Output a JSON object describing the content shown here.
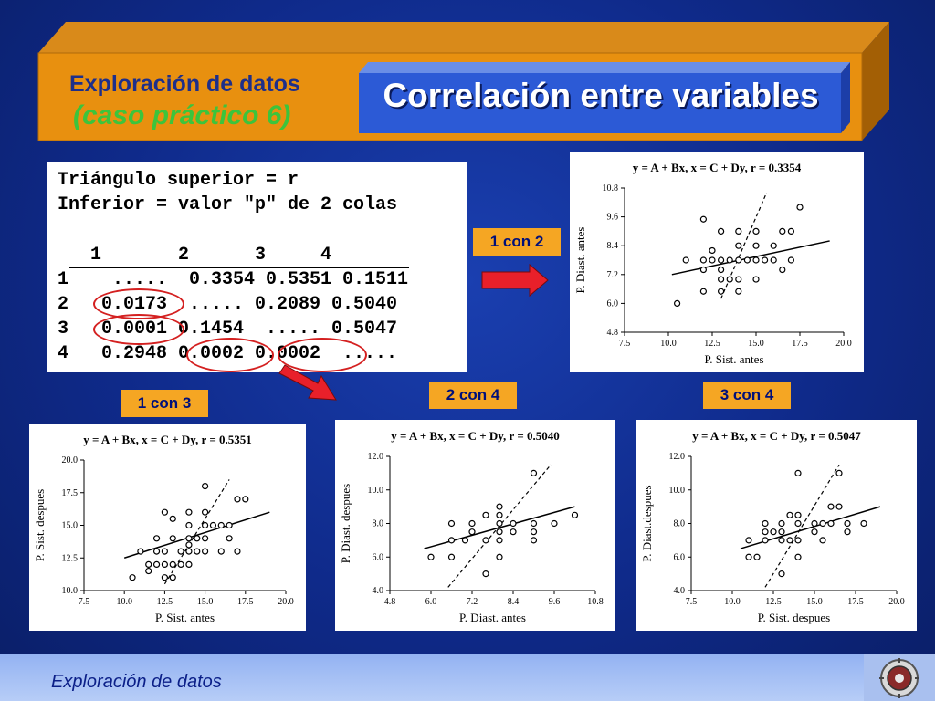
{
  "header": {
    "subtitle_line1": "Exploración de datos",
    "subtitle_line2": "(caso práctico 6)",
    "title": "Correlación entre variables"
  },
  "matrix": {
    "line1": "Triángulo superior = r",
    "line2": "Inferior = valor \"p\" de 2 colas",
    "header_row": "   1       2      3     4",
    "row1": "1    .....  0.3354 0.5351 0.1511",
    "row2": "2   0.0173  ..... 0.2089 0.5040",
    "row3": "3   0.0001 0.1454  ..... 0.5047",
    "row4": "4   0.2948 0.0002 0.0002  .....",
    "highlight_color": "#d42020"
  },
  "tags": {
    "t12": "1 con 2",
    "t13": "1 con 3",
    "t24": "2 con 4",
    "t34": "3 con 4",
    "color": "#f5a623"
  },
  "footer": {
    "text": "Exploración de datos"
  },
  "chart_data": [
    {
      "id": "c12",
      "type": "scatter",
      "title": "y = A + Bx, x = C + Dy, r = 0.3354",
      "xlabel": "P. Sist. antes",
      "ylabel": "P. Diast. antes",
      "xlim": [
        7.5,
        20.0
      ],
      "ylim": [
        4.8,
        10.8
      ],
      "xticks": [
        "7.5",
        "10.0",
        "12.5",
        "15.0",
        "17.5",
        "20.0"
      ],
      "yticks": [
        "4.8",
        "6.0",
        "7.2",
        "8.4",
        "9.6",
        "10.8"
      ],
      "points": [
        [
          10.5,
          6.0
        ],
        [
          11,
          7.8
        ],
        [
          12,
          9.5
        ],
        [
          12,
          7.8
        ],
        [
          12,
          7.4
        ],
        [
          12,
          6.5
        ],
        [
          12.5,
          8.2
        ],
        [
          12.5,
          7.8
        ],
        [
          13,
          9.0
        ],
        [
          13,
          7.8
        ],
        [
          13,
          7.4
        ],
        [
          13,
          7.0
        ],
        [
          13,
          6.5
        ],
        [
          13.5,
          7.8
        ],
        [
          13.5,
          7.0
        ],
        [
          14,
          9.0
        ],
        [
          14,
          8.4
        ],
        [
          14,
          7.8
        ],
        [
          14,
          7.0
        ],
        [
          14,
          6.5
        ],
        [
          14.5,
          7.8
        ],
        [
          15,
          9.0
        ],
        [
          15,
          8.4
        ],
        [
          15,
          7.8
        ],
        [
          15,
          7.0
        ],
        [
          15.5,
          7.8
        ],
        [
          16,
          8.4
        ],
        [
          16,
          7.8
        ],
        [
          16.5,
          9.0
        ],
        [
          16.5,
          7.4
        ],
        [
          17,
          9.0
        ],
        [
          17,
          7.8
        ],
        [
          17.5,
          10.0
        ]
      ],
      "fit_solid": [
        [
          10.2,
          7.2
        ],
        [
          19.2,
          8.6
        ]
      ],
      "fit_dashed": [
        [
          13.0,
          6.2
        ],
        [
          15.6,
          10.6
        ]
      ]
    },
    {
      "id": "c13",
      "type": "scatter",
      "title": "y = A + Bx, x = C + Dy, r = 0.5351",
      "xlabel": "P. Sist. antes",
      "ylabel": "P. Sist. despues",
      "xlim": [
        7.5,
        20.0
      ],
      "ylim": [
        10.0,
        20.0
      ],
      "xticks": [
        "7.5",
        "10.0",
        "12.5",
        "15.0",
        "17.5",
        "20.0"
      ],
      "yticks": [
        "10.0",
        "12.5",
        "15.0",
        "17.5",
        "20.0"
      ],
      "points": [
        [
          10.5,
          11.0
        ],
        [
          11,
          13.0
        ],
        [
          11.5,
          12.0
        ],
        [
          11.5,
          11.5
        ],
        [
          12,
          14.0
        ],
        [
          12,
          13.0
        ],
        [
          12,
          12.0
        ],
        [
          12.5,
          16.0
        ],
        [
          12.5,
          13.0
        ],
        [
          12.5,
          12.0
        ],
        [
          12.5,
          11.0
        ],
        [
          13,
          15.5
        ],
        [
          13,
          14.0
        ],
        [
          13,
          12.0
        ],
        [
          13,
          11.0
        ],
        [
          13.5,
          13.0
        ],
        [
          13.5,
          12.0
        ],
        [
          14,
          16.0
        ],
        [
          14,
          15.0
        ],
        [
          14,
          14.0
        ],
        [
          14,
          13.5
        ],
        [
          14,
          13.0
        ],
        [
          14,
          12.0
        ],
        [
          14.5,
          14.0
        ],
        [
          14.5,
          13.0
        ],
        [
          15,
          18.0
        ],
        [
          15,
          16.0
        ],
        [
          15,
          15.0
        ],
        [
          15,
          14.0
        ],
        [
          15,
          13.0
        ],
        [
          15.5,
          15.0
        ],
        [
          16,
          15.0
        ],
        [
          16,
          13.0
        ],
        [
          16.5,
          15.0
        ],
        [
          16.5,
          14.0
        ],
        [
          17,
          17.0
        ],
        [
          17,
          13.0
        ],
        [
          17.5,
          17.0
        ]
      ],
      "fit_solid": [
        [
          10.0,
          12.5
        ],
        [
          19.0,
          16.0
        ]
      ],
      "fit_dashed": [
        [
          12.5,
          10.5
        ],
        [
          16.5,
          18.5
        ]
      ]
    },
    {
      "id": "c24",
      "type": "scatter",
      "title": "y = A + Bx, x = C + Dy, r = 0.5040",
      "xlabel": "P. Diast. antes",
      "ylabel": "P. Diast. despues",
      "xlim": [
        4.8,
        10.8
      ],
      "ylim": [
        4.0,
        12.0
      ],
      "xticks": [
        "4.8",
        "6.0",
        "7.2",
        "8.4",
        "9.6",
        "10.8"
      ],
      "yticks": [
        "4.0",
        "6.0",
        "8.0",
        "10.0",
        "12.0"
      ],
      "points": [
        [
          6.0,
          6.0
        ],
        [
          6.6,
          8.0
        ],
        [
          6.6,
          7.0
        ],
        [
          6.6,
          6.0
        ],
        [
          7.0,
          7.0
        ],
        [
          7.2,
          8.0
        ],
        [
          7.2,
          7.5
        ],
        [
          7.6,
          8.5
        ],
        [
          7.6,
          7.0
        ],
        [
          7.6,
          5.0
        ],
        [
          8.0,
          9.0
        ],
        [
          8.0,
          8.5
        ],
        [
          8.0,
          8.0
        ],
        [
          8.0,
          7.5
        ],
        [
          8.0,
          7.0
        ],
        [
          8.0,
          6.0
        ],
        [
          8.4,
          8.0
        ],
        [
          8.4,
          7.5
        ],
        [
          9.0,
          11.0
        ],
        [
          9.0,
          8.0
        ],
        [
          9.0,
          7.5
        ],
        [
          9.0,
          7.0
        ],
        [
          9.6,
          8.0
        ],
        [
          10.2,
          8.5
        ]
      ],
      "fit_solid": [
        [
          5.8,
          6.5
        ],
        [
          10.2,
          9.0
        ]
      ],
      "fit_dashed": [
        [
          6.5,
          4.2
        ],
        [
          9.5,
          11.5
        ]
      ]
    },
    {
      "id": "c34",
      "type": "scatter",
      "title": "y = A + Bx, x = C + Dy, r = 0.5047",
      "xlabel": "P. Sist. despues",
      "ylabel": "P. Diast.despues",
      "xlim": [
        7.5,
        20.0
      ],
      "ylim": [
        4.0,
        12.0
      ],
      "xticks": [
        "7.5",
        "10.0",
        "12.5",
        "15.0",
        "17.5",
        "20.0"
      ],
      "yticks": [
        "4.0",
        "6.0",
        "8.0",
        "10.0",
        "12.0"
      ],
      "points": [
        [
          11,
          7.0
        ],
        [
          11,
          6.0
        ],
        [
          11.5,
          6.0
        ],
        [
          12,
          8.0
        ],
        [
          12,
          7.5
        ],
        [
          12,
          7.0
        ],
        [
          12.5,
          7.5
        ],
        [
          13,
          8.0
        ],
        [
          13,
          7.5
        ],
        [
          13,
          7.0
        ],
        [
          13,
          5.0
        ],
        [
          13.5,
          8.5
        ],
        [
          13.5,
          7.0
        ],
        [
          14,
          11.0
        ],
        [
          14,
          8.5
        ],
        [
          14,
          8.0
        ],
        [
          14,
          7.0
        ],
        [
          14,
          6.0
        ],
        [
          15,
          8.0
        ],
        [
          15,
          7.5
        ],
        [
          15.5,
          8.0
        ],
        [
          15.5,
          7.0
        ],
        [
          16,
          9.0
        ],
        [
          16,
          8.0
        ],
        [
          16.5,
          11.0
        ],
        [
          16.5,
          9.0
        ],
        [
          17,
          8.0
        ],
        [
          17,
          7.5
        ],
        [
          18,
          8.0
        ]
      ],
      "fit_solid": [
        [
          10.5,
          6.5
        ],
        [
          19.0,
          9.0
        ]
      ],
      "fit_dashed": [
        [
          12.0,
          4.2
        ],
        [
          16.5,
          11.5
        ]
      ]
    }
  ]
}
